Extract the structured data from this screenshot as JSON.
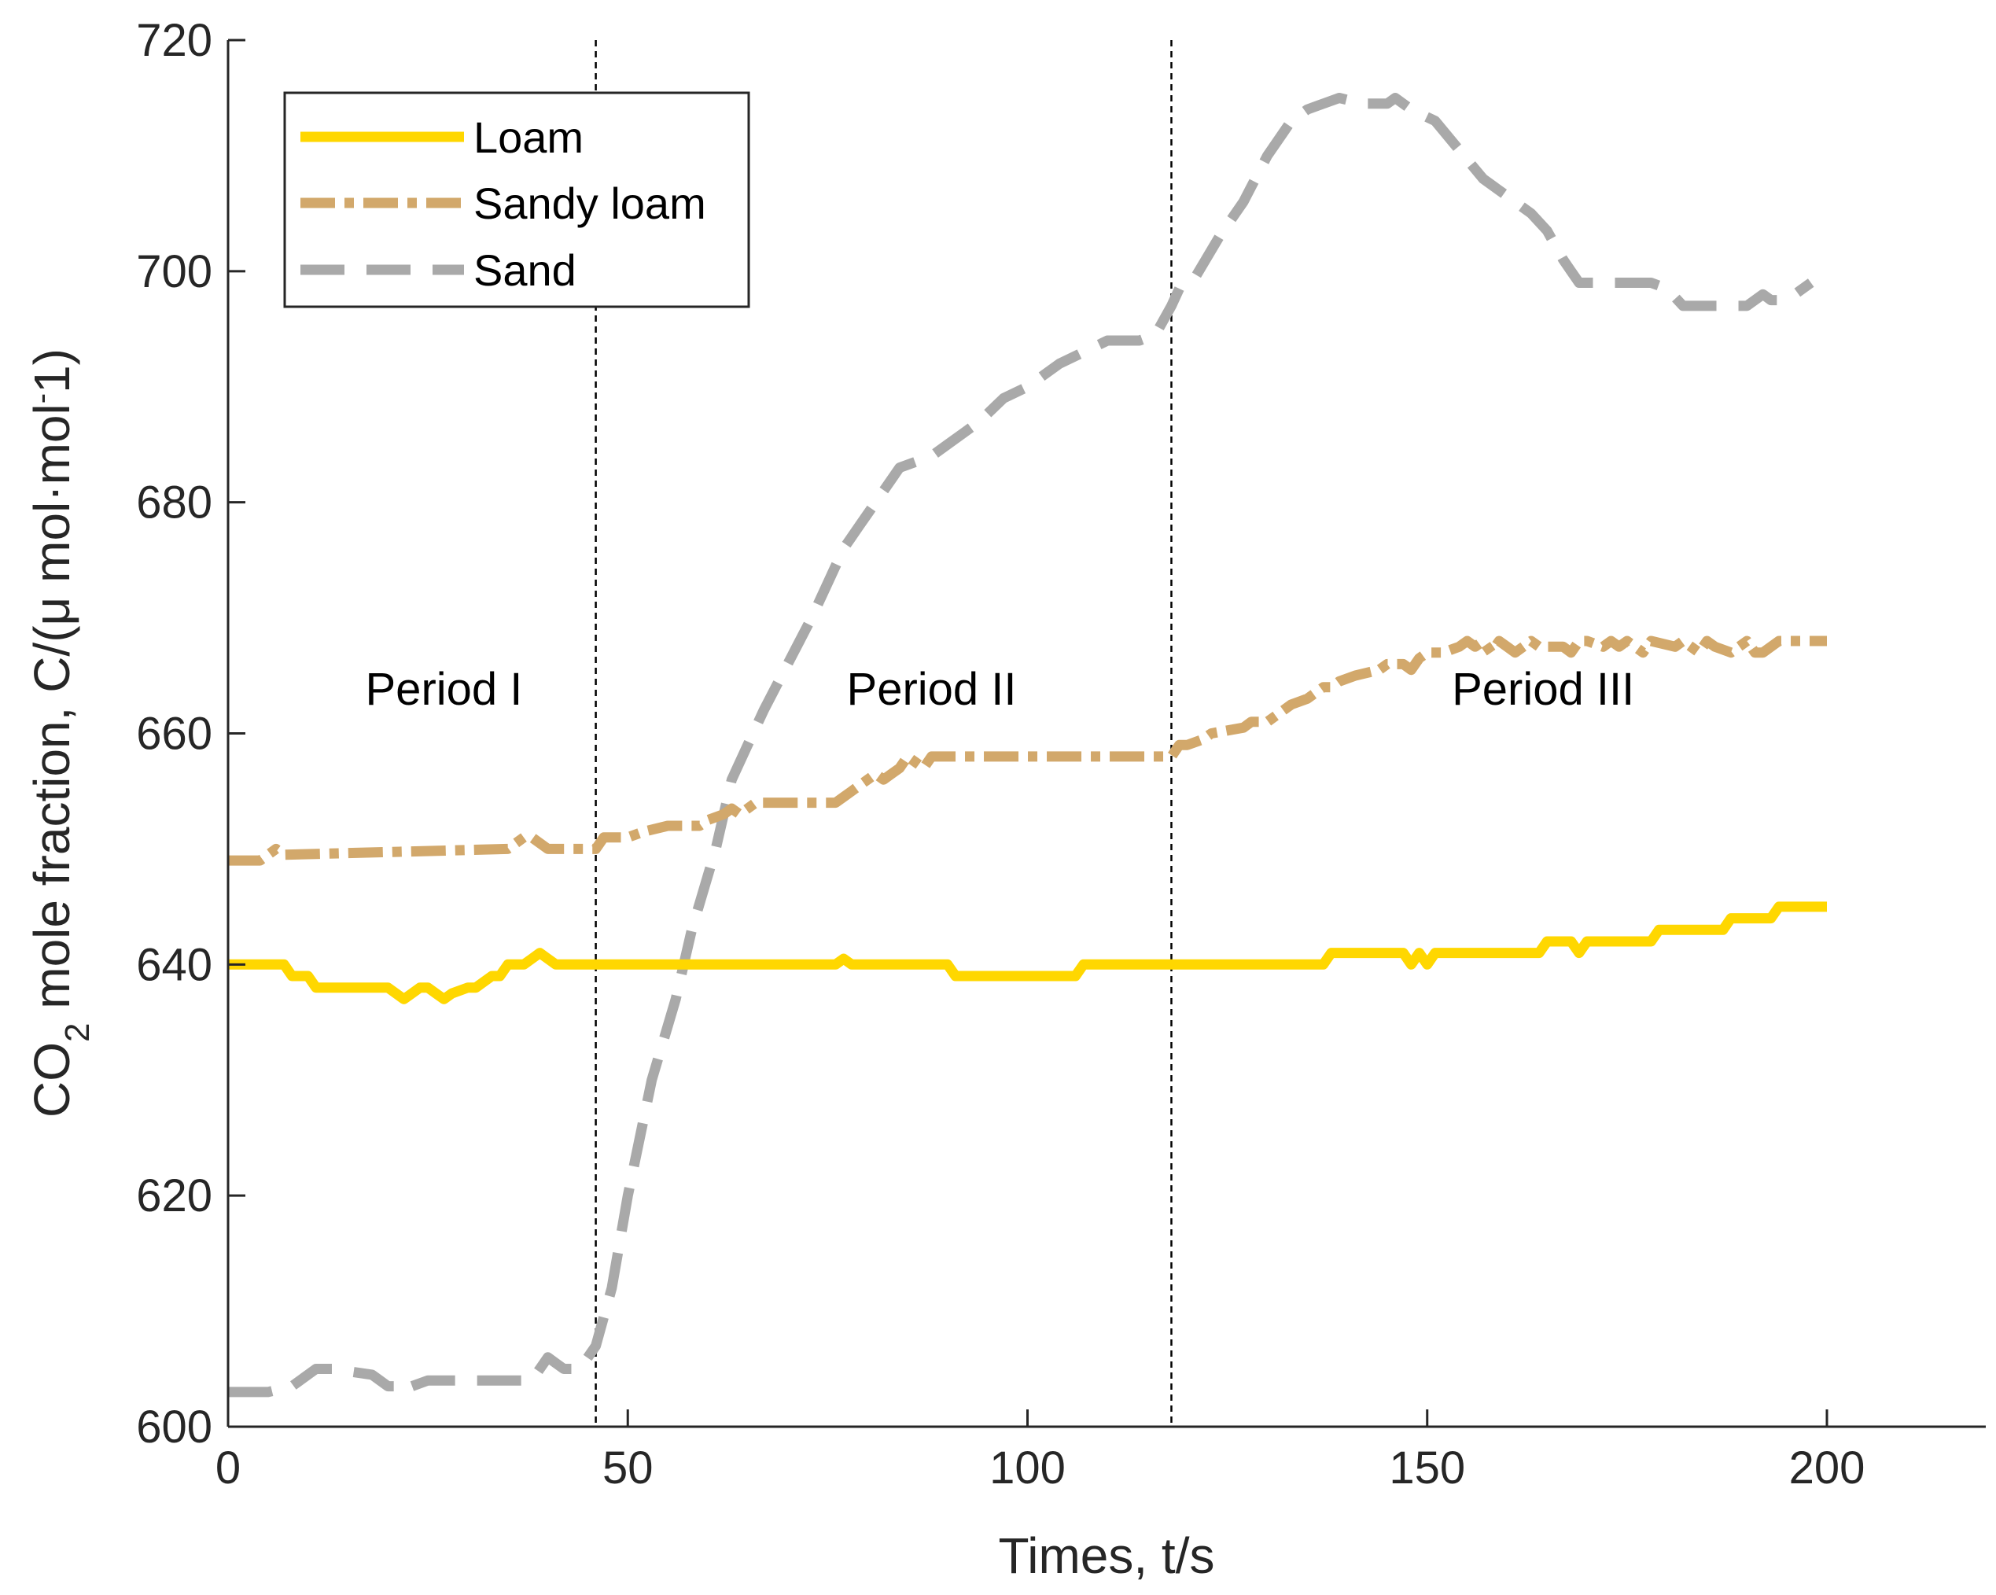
{
  "chart_data": {
    "type": "line",
    "title": "",
    "xlabel": "Times, t/s",
    "ylabel": {
      "prefix": "CO",
      "subscript": "2",
      "main": " mole fraction, C/(μ mol·mol",
      "superscript": "-",
      "suffix": "1)"
    },
    "xlim": [
      0,
      220
    ],
    "ylim": [
      600,
      720
    ],
    "xticks": [
      0,
      50,
      100,
      150,
      200
    ],
    "yticks": [
      600,
      620,
      640,
      660,
      680,
      700,
      720
    ],
    "grid": false,
    "legend_position": "top-left",
    "vlines": [
      46,
      118
    ],
    "annotations": [
      {
        "text": "Period I",
        "x": 27,
        "y": 662.5
      },
      {
        "text": "Period II",
        "x": 88,
        "y": 662.5
      },
      {
        "text": "Period III",
        "x": 164.5,
        "y": 662.5
      }
    ],
    "series": [
      {
        "name": "Loam",
        "color": "#ffd700",
        "style": "solid",
        "x": [
          0,
          7,
          8,
          10,
          11,
          20,
          21,
          22,
          23,
          24,
          25,
          26,
          27,
          28,
          30,
          31,
          33,
          34,
          35,
          37,
          38,
          39,
          40,
          41,
          76,
          77,
          78,
          90,
          91,
          106,
          107,
          137,
          138,
          147,
          148,
          149,
          150,
          151,
          152,
          164,
          165,
          168,
          169,
          170,
          178,
          179,
          187,
          188,
          193,
          194,
          200
        ],
        "values": [
          640,
          640,
          639,
          639,
          638,
          638,
          637.5,
          637,
          637.5,
          638,
          638,
          637.5,
          637,
          637.5,
          638,
          638,
          639,
          639,
          640,
          640,
          640.5,
          641,
          640.5,
          640,
          640,
          640.5,
          640,
          640,
          639,
          639,
          640,
          640,
          641,
          641,
          640,
          641,
          640,
          641,
          641,
          641,
          642,
          642,
          641,
          642,
          642,
          643,
          643,
          644,
          644,
          645,
          645
        ]
      },
      {
        "name": "Sandy loam",
        "color": "#d2a86b",
        "style": "dashdot",
        "x": [
          0,
          4,
          5,
          6,
          7,
          35,
          36,
          37,
          38,
          40,
          41,
          46,
          47,
          50,
          52,
          55,
          59,
          60,
          62,
          63,
          64,
          65,
          66,
          76,
          77,
          78,
          79,
          80,
          81,
          82,
          83,
          84,
          85,
          86,
          87,
          88,
          118,
          119,
          120,
          122,
          123,
          127,
          128,
          130,
          131,
          132,
          133,
          135,
          136,
          137,
          138,
          139,
          141,
          144,
          145,
          146,
          147,
          148,
          149,
          150,
          151,
          152,
          154,
          155,
          156,
          157,
          158,
          159,
          160,
          161,
          163,
          164,
          167,
          168,
          169,
          170,
          172,
          173,
          174,
          175,
          176,
          177,
          178,
          181,
          182,
          183,
          184,
          185,
          186,
          188,
          189,
          190,
          191,
          192,
          194,
          196,
          200
        ],
        "values": [
          649,
          649,
          649.5,
          650,
          649.5,
          650,
          650.5,
          651,
          651,
          650,
          650,
          650,
          651,
          651,
          651.5,
          652,
          652,
          652.5,
          653,
          653.5,
          653,
          653.5,
          654,
          654,
          654.5,
          655,
          655.5,
          656,
          656.5,
          656,
          656.5,
          657,
          658,
          657.5,
          657,
          658,
          658,
          659,
          659,
          659.5,
          660,
          660.5,
          661,
          661,
          661.5,
          662,
          662.5,
          663,
          663.5,
          664,
          664,
          664.5,
          665,
          665.5,
          666,
          666,
          666,
          665.5,
          666.5,
          667,
          667,
          667,
          667.5,
          668,
          667.5,
          668,
          667,
          668,
          667.5,
          667,
          668,
          667.5,
          667.5,
          667,
          668,
          668,
          667.5,
          668,
          667.5,
          668,
          667.5,
          667,
          668,
          667.5,
          668,
          667.5,
          667,
          668,
          667.5,
          667,
          667.5,
          668,
          667,
          667,
          668,
          668,
          668
        ]
      },
      {
        "name": "Sand",
        "color": "#a9a9a9",
        "style": "dashed",
        "x": [
          0,
          5,
          8,
          10,
          11,
          12,
          13,
          18,
          19,
          20,
          21,
          22,
          23,
          25,
          28,
          33,
          35,
          38,
          39,
          40,
          41,
          42,
          44,
          46,
          48,
          50,
          53,
          56,
          58,
          61,
          63,
          65,
          67,
          70,
          73,
          75,
          77,
          78,
          79,
          80,
          82,
          84,
          86,
          88,
          90,
          92,
          94,
          97,
          100,
          104,
          107,
          110,
          113,
          114,
          116,
          118,
          119,
          121,
          124,
          127,
          130,
          132,
          133,
          135,
          137,
          139,
          142,
          145,
          146,
          148,
          151,
          154,
          157,
          161,
          163,
          165,
          167,
          168,
          169,
          170,
          174,
          176,
          178,
          180,
          182,
          185,
          188,
          190,
          192,
          193,
          194,
          196,
          198
        ],
        "values": [
          603,
          603,
          603.5,
          604.5,
          605,
          605,
          605,
          604.5,
          604,
          603.5,
          603.5,
          603,
          603.5,
          604,
          604,
          604,
          604,
          604,
          605,
          606,
          605.5,
          605,
          605,
          607,
          612,
          620,
          630,
          637,
          643,
          650,
          656,
          659,
          662,
          666,
          670,
          673,
          676,
          677,
          678,
          679,
          681,
          683,
          683.5,
          684,
          685,
          686,
          687,
          689,
          690,
          692,
          693,
          694,
          694,
          694,
          694.5,
          697,
          698.5,
          699.5,
          703,
          706,
          710,
          712,
          713,
          714,
          714.5,
          715,
          714.5,
          714.5,
          715,
          714,
          713,
          710.5,
          708,
          706,
          705,
          703.5,
          701,
          700,
          699,
          699,
          699,
          699,
          699,
          698.5,
          697,
          697,
          697,
          697,
          698,
          697.5,
          697.5,
          698,
          699
        ]
      }
    ]
  }
}
